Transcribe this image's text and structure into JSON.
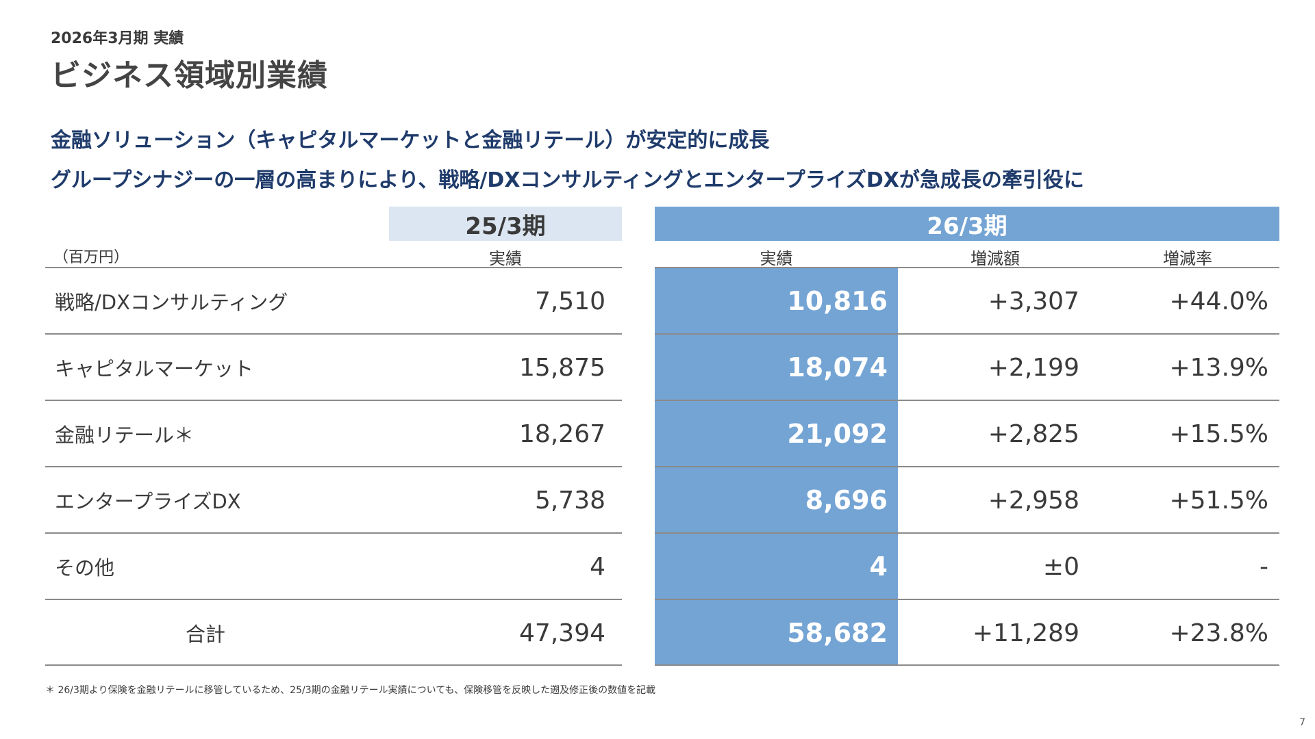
{
  "header": {
    "subtitle": "2026年3月期 実績",
    "title": "ビジネス領域別業績"
  },
  "headlines": [
    "金融ソリューション（キャピタルマーケットと金融リテール）が安定的に成長",
    "グループシナジーの一層の高まりにより、戦略/DXコンサルティングとエンタープライズDXが急成長の牽引役に"
  ],
  "table": {
    "unit": "（百万円）",
    "period_prev": "25/3期",
    "period_cur": "26/3期",
    "col_prev_actual": "実績",
    "col_cur_actual": "実績",
    "col_diff": "増減額",
    "col_rate": "増減率",
    "rows": [
      {
        "label": "戦略/DXコンサルティング",
        "prev": "7,510",
        "cur": "10,816",
        "diff": "+3,307",
        "rate": "+44.0%"
      },
      {
        "label": "キャピタルマーケット",
        "prev": "15,875",
        "cur": "18,074",
        "diff": "+2,199",
        "rate": "+13.9%"
      },
      {
        "label": "金融リテール＊",
        "prev": "18,267",
        "cur": "21,092",
        "diff": "+2,825",
        "rate": "+15.5%"
      },
      {
        "label": "エンタープライズDX",
        "prev": "5,738",
        "cur": "8,696",
        "diff": "+2,958",
        "rate": "+51.5%"
      },
      {
        "label": "その他",
        "prev": "4",
        "cur": "4",
        "diff": "±0",
        "rate": "-"
      },
      {
        "label": "合計",
        "prev": "47,394",
        "cur": "58,682",
        "diff": "+11,289",
        "rate": "+23.8%"
      }
    ]
  },
  "footnote": "＊ 26/3期より保険を金融リテールに移管しているため、25/3期の金融リテール実績についても、保険移管を反映した遡及修正後の数値を記載",
  "page_number": "7",
  "colors": {
    "accent_blue": "#74a4d4",
    "light_blue": "#dce6f2",
    "headline_navy": "#1f3b6b"
  }
}
